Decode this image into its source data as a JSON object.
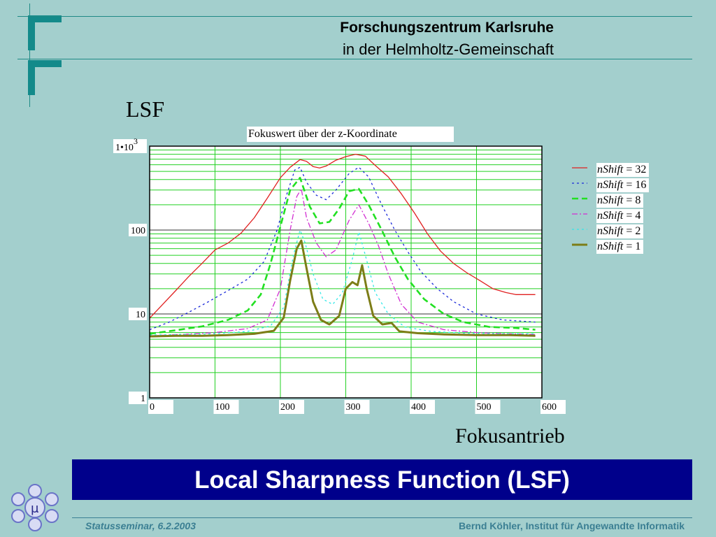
{
  "header": {
    "org_line1": "Forschungszentrum Karlsruhe",
    "org_line2": "in der Helmholtz-Gemeinschaft"
  },
  "slide": {
    "y_label": "LSF",
    "x_label": "Fokusantrieb",
    "banner_title": "Local Sharpness Function (LSF)"
  },
  "footer": {
    "left": "Statusseminar, 6.2.2003",
    "right": "Bernd Köhler, Institut für Angewandte Informatik"
  },
  "colors": {
    "background": "#a3cfcd",
    "logo": "#138a8a",
    "banner": "#00008b",
    "footer_text": "#3b7f93"
  },
  "chart_data": {
    "type": "line",
    "title": "Fokuswert über der z-Koordinate",
    "xlabel": "Fokusantrieb",
    "ylabel": "LSF",
    "xlim": [
      0,
      600
    ],
    "ylim": [
      1,
      1000
    ],
    "y_scale": "log",
    "grid": true,
    "legend_position": "right",
    "x_ticks": [
      "0",
      "100",
      "200",
      "300",
      "400",
      "500",
      "600"
    ],
    "y_ticks": [
      "1",
      "10",
      "100",
      "1•10"
    ],
    "y_tick_top_exponent": "3",
    "series": [
      {
        "name": "nShift = 32",
        "name_var": "nShift",
        "name_val": "= 32",
        "color": "#e02020",
        "dash": "solid",
        "width": 1.3,
        "points": [
          [
            0,
            8.9
          ],
          [
            20,
            13
          ],
          [
            40,
            19
          ],
          [
            60,
            28
          ],
          [
            80,
            40
          ],
          [
            100,
            58
          ],
          [
            120,
            70
          ],
          [
            140,
            92
          ],
          [
            160,
            140
          ],
          [
            180,
            240
          ],
          [
            200,
            420
          ],
          [
            215,
            560
          ],
          [
            230,
            690
          ],
          [
            240,
            660
          ],
          [
            250,
            570
          ],
          [
            260,
            550
          ],
          [
            270,
            580
          ],
          [
            285,
            680
          ],
          [
            300,
            750
          ],
          [
            315,
            800
          ],
          [
            330,
            760
          ],
          [
            345,
            590
          ],
          [
            365,
            430
          ],
          [
            385,
            270
          ],
          [
            405,
            160
          ],
          [
            425,
            90
          ],
          [
            445,
            56
          ],
          [
            465,
            40
          ],
          [
            485,
            31
          ],
          [
            505,
            25
          ],
          [
            525,
            20
          ],
          [
            545,
            18
          ],
          [
            560,
            17
          ],
          [
            590,
            17
          ]
        ]
      },
      {
        "name": "nShift = 16",
        "name_var": "nShift",
        "name_val": "= 16",
        "color": "#1c2bd9",
        "dash": "3,4",
        "width": 1.3,
        "points": [
          [
            0,
            6.5
          ],
          [
            30,
            8
          ],
          [
            60,
            10.5
          ],
          [
            90,
            14
          ],
          [
            120,
            19
          ],
          [
            150,
            26
          ],
          [
            175,
            42
          ],
          [
            195,
            100
          ],
          [
            210,
            270
          ],
          [
            222,
            520
          ],
          [
            230,
            560
          ],
          [
            240,
            370
          ],
          [
            255,
            260
          ],
          [
            270,
            230
          ],
          [
            285,
            300
          ],
          [
            305,
            470
          ],
          [
            320,
            560
          ],
          [
            335,
            430
          ],
          [
            355,
            200
          ],
          [
            375,
            100
          ],
          [
            395,
            55
          ],
          [
            415,
            32
          ],
          [
            440,
            20
          ],
          [
            465,
            14
          ],
          [
            500,
            10
          ],
          [
            540,
            8.5
          ],
          [
            590,
            8
          ]
        ]
      },
      {
        "name": "nShift = 8",
        "name_var": "nShift",
        "name_val": "= 8",
        "color": "#22e022",
        "dash": "9,5",
        "width": 2.6,
        "points": [
          [
            0,
            5.8
          ],
          [
            40,
            6.4
          ],
          [
            80,
            7.1
          ],
          [
            120,
            8.5
          ],
          [
            150,
            11
          ],
          [
            170,
            17
          ],
          [
            185,
            40
          ],
          [
            200,
            110
          ],
          [
            215,
            300
          ],
          [
            230,
            420
          ],
          [
            245,
            190
          ],
          [
            260,
            120
          ],
          [
            275,
            125
          ],
          [
            290,
            180
          ],
          [
            305,
            290
          ],
          [
            320,
            310
          ],
          [
            335,
            200
          ],
          [
            355,
            100
          ],
          [
            375,
            48
          ],
          [
            395,
            26
          ],
          [
            420,
            15
          ],
          [
            450,
            10
          ],
          [
            480,
            8
          ],
          [
            520,
            7
          ],
          [
            560,
            6.8
          ],
          [
            590,
            6.5
          ]
        ]
      },
      {
        "name": "nShift = 4",
        "name_var": "nShift",
        "name_val": "= 4",
        "color": "#d22fd2",
        "dash": "8,3,2,3",
        "width": 1.3,
        "points": [
          [
            0,
            5.5
          ],
          [
            50,
            5.7
          ],
          [
            100,
            6
          ],
          [
            150,
            6.7
          ],
          [
            180,
            8.5
          ],
          [
            200,
            20
          ],
          [
            215,
            100
          ],
          [
            225,
            250
          ],
          [
            232,
            310
          ],
          [
            240,
            140
          ],
          [
            255,
            70
          ],
          [
            270,
            48
          ],
          [
            285,
            58
          ],
          [
            305,
            130
          ],
          [
            320,
            200
          ],
          [
            335,
            120
          ],
          [
            350,
            65
          ],
          [
            365,
            30
          ],
          [
            385,
            13
          ],
          [
            410,
            8
          ],
          [
            450,
            6.5
          ],
          [
            500,
            6
          ],
          [
            550,
            5.8
          ],
          [
            590,
            5.7
          ]
        ]
      },
      {
        "name": "nShift = 2",
        "name_var": "nShift",
        "name_val": "= 2",
        "color": "#33e8e8",
        "dash": "3,4",
        "width": 1.3,
        "points": [
          [
            0,
            5.6
          ],
          [
            50,
            5.7
          ],
          [
            100,
            5.8
          ],
          [
            150,
            6.2
          ],
          [
            185,
            7.2
          ],
          [
            205,
            12
          ],
          [
            220,
            50
          ],
          [
            230,
            100
          ],
          [
            238,
            70
          ],
          [
            250,
            30
          ],
          [
            265,
            15
          ],
          [
            280,
            13
          ],
          [
            295,
            18
          ],
          [
            310,
            45
          ],
          [
            320,
            95
          ],
          [
            330,
            50
          ],
          [
            345,
            18
          ],
          [
            365,
            10
          ],
          [
            390,
            7
          ],
          [
            430,
            6.2
          ],
          [
            480,
            5.9
          ],
          [
            540,
            5.8
          ],
          [
            590,
            5.8
          ]
        ]
      },
      {
        "name": "nShift = 1",
        "name_var": "nShift",
        "name_val": "= 1",
        "color": "#7d7d17",
        "dash": "solid",
        "width": 3,
        "points": [
          [
            0,
            5.4
          ],
          [
            40,
            5.5
          ],
          [
            80,
            5.5
          ],
          [
            120,
            5.6
          ],
          [
            160,
            5.8
          ],
          [
            190,
            6.3
          ],
          [
            205,
            9
          ],
          [
            215,
            25
          ],
          [
            225,
            60
          ],
          [
            232,
            75
          ],
          [
            240,
            35
          ],
          [
            250,
            14
          ],
          [
            262,
            8.5
          ],
          [
            275,
            7.5
          ],
          [
            290,
            9.5
          ],
          [
            300,
            20
          ],
          [
            310,
            24
          ],
          [
            318,
            22
          ],
          [
            325,
            38
          ],
          [
            332,
            20
          ],
          [
            342,
            9.5
          ],
          [
            356,
            7.5
          ],
          [
            370,
            7.8
          ],
          [
            382,
            6.2
          ],
          [
            410,
            5.9
          ],
          [
            450,
            5.7
          ],
          [
            500,
            5.6
          ],
          [
            550,
            5.6
          ],
          [
            590,
            5.5
          ]
        ]
      }
    ]
  }
}
